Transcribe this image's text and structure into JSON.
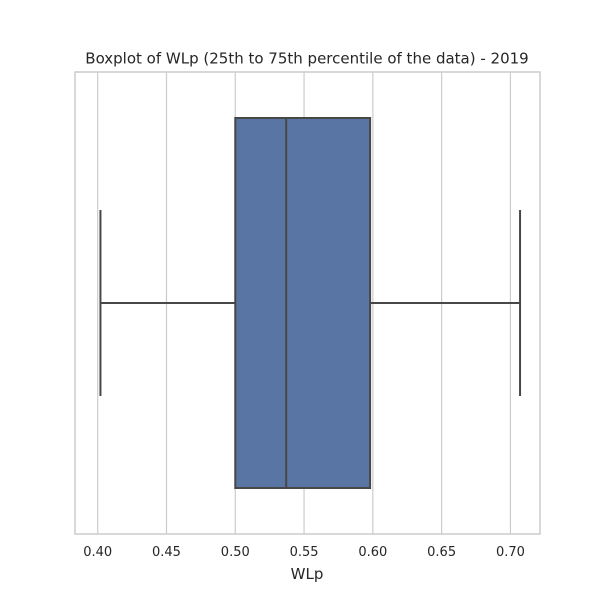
{
  "chart_data": {
    "type": "boxplot",
    "title": "Boxplot of WLp (25th to 75th percentile of the data) - 2019",
    "xlabel": "WLp",
    "ylabel": "",
    "xlim": [
      0.3835,
      0.7215
    ],
    "xticks": [
      0.4,
      0.45,
      0.5,
      0.55,
      0.6,
      0.65,
      0.7
    ],
    "xtick_labels": [
      "0.40",
      "0.45",
      "0.50",
      "0.55",
      "0.60",
      "0.65",
      "0.70"
    ],
    "grid": "vertical",
    "orientation": "horizontal",
    "box": {
      "whisker_low": 0.402,
      "q1": 0.5,
      "median": 0.537,
      "q3": 0.598,
      "whisker_high": 0.707
    },
    "colors": {
      "box_fill": "#5875a4",
      "line": "#474747",
      "grid": "#cccccc",
      "frame": "#cccccc",
      "text": "#262626"
    }
  }
}
